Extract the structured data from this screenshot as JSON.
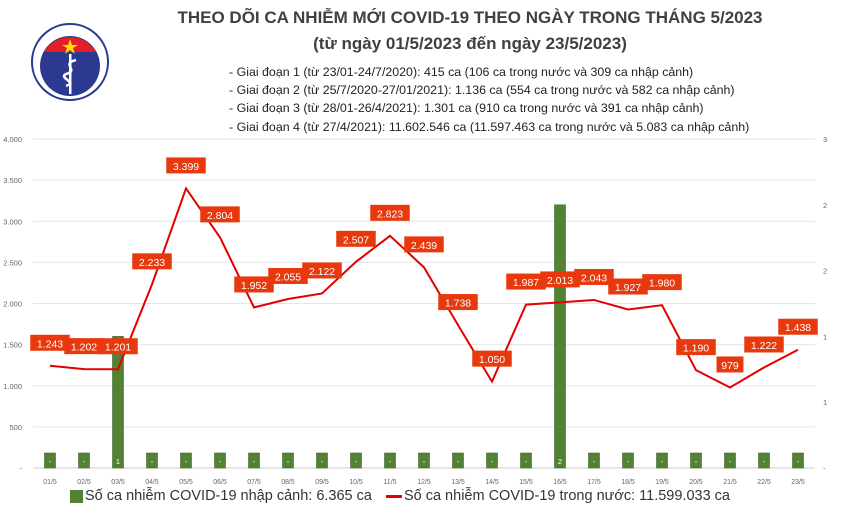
{
  "header": {
    "title": "THEO DÕI CA NHIỄM MỚI COVID-19 THEO NGÀY TRONG THÁNG 5/2023",
    "subtitle": "(từ ngày 01/5/2023 đến ngày 23/5/2023)",
    "notes": [
      "- Giai đoạn 1 (từ 23/01-24/7/2020): 415 ca (106 ca trong nước và 309 ca nhập cảnh)",
      "- Giai đoạn 2 (từ 25/7/2020-27/01/2021): 1.136 ca (554 ca trong nước và 582 ca nhập cảnh)",
      "- Giai đoạn 3 (từ 28/01-26/4/2021): 1.301 ca (910 ca trong nước và 391 ca nhập cảnh)",
      "- Giai đoạn 4 (từ 27/4/2021): 11.602.546 ca (11.597.463 ca trong nước và 5.083 ca nhập cảnh)"
    ]
  },
  "logo": {
    "text_top": "BỘ Y TẾ",
    "text_bottom": "MINISTRY OF HEALTH"
  },
  "chart_data": {
    "type": "bar+line",
    "categories": [
      "01/5",
      "02/5",
      "03/5",
      "04/5",
      "05/5",
      "06/5",
      "07/5",
      "08/5",
      "09/5",
      "10/5",
      "11/5",
      "12/5",
      "13/5",
      "14/5",
      "15/5",
      "16/5",
      "17/5",
      "18/5",
      "19/5",
      "20/5",
      "21/5",
      "22/5",
      "23/5"
    ],
    "series": [
      {
        "name": "Số ca nhiễm COVID-19 nhập cảnh: 6.365 ca",
        "type": "bar",
        "axis": "right",
        "color": "#548235",
        "values": [
          0,
          0,
          1,
          0,
          0,
          0,
          0,
          0,
          0,
          0,
          0,
          0,
          0,
          0,
          0,
          2,
          0,
          0,
          0,
          0,
          0,
          0,
          0
        ]
      },
      {
        "name": "Số ca nhiễm COVID-19 trong nước: 11.599.033 ca",
        "type": "line",
        "axis": "left",
        "color": "#e30000",
        "values": [
          1243,
          1202,
          1201,
          2233,
          3399,
          2804,
          1952,
          2055,
          2122,
          2507,
          2823,
          2439,
          1738,
          1050,
          1987,
          2013,
          2043,
          1927,
          1980,
          1190,
          979,
          1222,
          1438
        ]
      }
    ],
    "data_labels_line": [
      "1.243",
      "1.202",
      "1.201",
      "2.233",
      "3.399",
      "2.804",
      "1.952",
      "2.055",
      "2.122",
      "2.507",
      "2.823",
      "2.439",
      "1.738",
      "1.050",
      "1.987",
      "2.013",
      "2.043",
      "1.927",
      "1.980",
      "1.190",
      "979",
      "1.222",
      "1.438"
    ],
    "data_labels_bar": [
      "-",
      "-",
      "1",
      "-",
      "-",
      "-",
      "-",
      "-",
      "-",
      "-",
      "-",
      "-",
      "-",
      "-",
      "-",
      "2",
      "-",
      "-",
      "-",
      "-",
      "-",
      "-",
      "-"
    ],
    "y_left": {
      "ylim": [
        0,
        4000
      ],
      "ticks": [
        "-",
        "500",
        "1.000",
        "1.500",
        "2.000",
        "2.500",
        "3.000",
        "3.500",
        "4.000"
      ]
    },
    "y_right": {
      "ylim": [
        0,
        2.5
      ],
      "ticks": [
        "-",
        "1",
        "1",
        "2",
        "2",
        "3"
      ]
    },
    "grid": true,
    "legend": "bottom",
    "label_color": "#e8380d"
  }
}
